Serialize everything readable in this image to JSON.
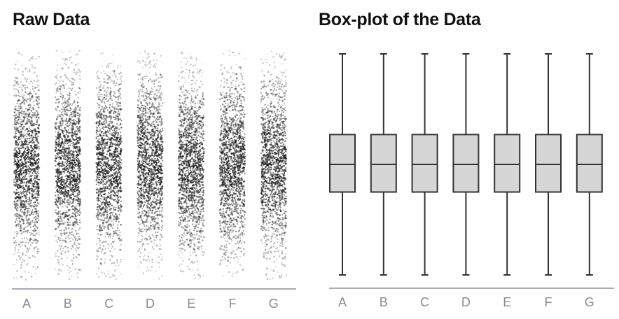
{
  "chart_data": [
    {
      "type": "scatter",
      "title": "Raw Data",
      "categories": [
        "A",
        "B",
        "C",
        "D",
        "E",
        "F",
        "G"
      ],
      "ylim": [
        0,
        1
      ],
      "distribution": {
        "center": 0.5,
        "upper_whisker": 1.0,
        "lower_whisker": 0.0
      },
      "axis_color": "#8e8ea0",
      "point_color": "#1a1a1a"
    },
    {
      "type": "box",
      "title": "Box-plot of the Data",
      "categories": [
        "A",
        "B",
        "C",
        "D",
        "E",
        "F",
        "G"
      ],
      "ylim": [
        0,
        1
      ],
      "boxes": [
        {
          "name": "A",
          "min": 0.0,
          "q1": 0.375,
          "median": 0.5,
          "q3": 0.635,
          "max": 1.0
        },
        {
          "name": "B",
          "min": 0.0,
          "q1": 0.375,
          "median": 0.5,
          "q3": 0.635,
          "max": 1.0
        },
        {
          "name": "C",
          "min": 0.0,
          "q1": 0.375,
          "median": 0.5,
          "q3": 0.635,
          "max": 1.0
        },
        {
          "name": "D",
          "min": 0.0,
          "q1": 0.375,
          "median": 0.5,
          "q3": 0.635,
          "max": 1.0
        },
        {
          "name": "E",
          "min": 0.0,
          "q1": 0.375,
          "median": 0.5,
          "q3": 0.635,
          "max": 1.0
        },
        {
          "name": "F",
          "min": 0.0,
          "q1": 0.375,
          "median": 0.5,
          "q3": 0.635,
          "max": 1.0
        },
        {
          "name": "G",
          "min": 0.0,
          "q1": 0.375,
          "median": 0.5,
          "q3": 0.635,
          "max": 1.0
        }
      ],
      "box_fill": "#d6d6d6",
      "box_stroke": "#333333",
      "axis_color": "#8e8ea0"
    }
  ]
}
